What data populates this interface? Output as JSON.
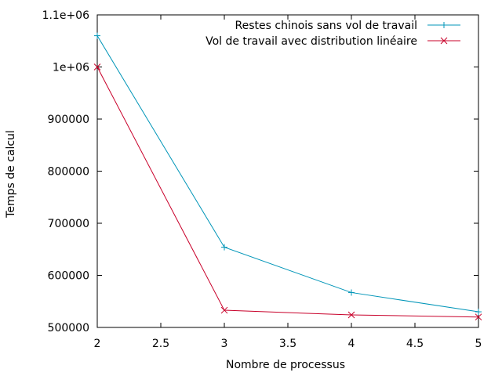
{
  "chart_data": {
    "type": "line",
    "title": "",
    "xlabel": "Nombre de processus",
    "ylabel": "Temps de calcul",
    "xlim": [
      2,
      5
    ],
    "ylim": [
      500000,
      1100000
    ],
    "x_ticks": [
      2,
      2.5,
      3,
      3.5,
      4,
      4.5,
      5
    ],
    "x_tick_labels": [
      "2",
      "2.5",
      "3",
      "3.5",
      "4",
      "4.5",
      "5"
    ],
    "y_ticks": [
      500000,
      600000,
      700000,
      800000,
      900000,
      1000000,
      1100000
    ],
    "y_tick_labels": [
      "500000",
      "600000",
      "700000",
      "800000",
      "900000",
      "1e+06",
      "1.1e+06"
    ],
    "grid": false,
    "legend_position": "top-right",
    "series": [
      {
        "name": "Restes chinois sans vol de travail",
        "color": "#0095b8",
        "marker": "plus",
        "x": [
          2,
          3,
          4,
          5
        ],
        "y": [
          1060000,
          654000,
          567000,
          530000
        ]
      },
      {
        "name": "Vol de travail avec distribution linéaire",
        "color": "#c8002a",
        "marker": "cross",
        "x": [
          2,
          3,
          4,
          5
        ],
        "y": [
          1000000,
          533000,
          524000,
          520000
        ]
      }
    ]
  }
}
